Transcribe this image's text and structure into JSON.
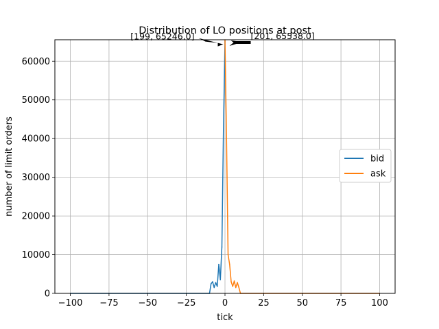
{
  "chart_data": {
    "type": "line",
    "title": "Distribution of LO positions at post",
    "xlabel": "tick",
    "ylabel": "number of limit orders",
    "xlim": [
      -110,
      110
    ],
    "ylim": [
      0,
      65538
    ],
    "grid": true,
    "legend_position": "center-right",
    "xticks": [
      -100,
      -75,
      -50,
      -25,
      0,
      25,
      50,
      75,
      100
    ],
    "xtick_labels": [
      "−100",
      "−75",
      "−50",
      "−25",
      "0",
      "25",
      "50",
      "75",
      "100"
    ],
    "yticks": [
      0,
      10000,
      20000,
      30000,
      40000,
      50000,
      60000
    ],
    "ytick_labels": [
      "0",
      "10000",
      "20000",
      "30000",
      "40000",
      "50000",
      "60000"
    ],
    "series": [
      {
        "name": "bid",
        "color": "#1f77b4",
        "x": [
          -100,
          -10,
          -9,
          -8,
          -7,
          -6,
          -5,
          -4,
          -3,
          -2,
          -1,
          0
        ],
        "y": [
          0,
          0,
          2500,
          3000,
          1500,
          2800,
          1800,
          7500,
          3500,
          12000,
          42000,
          65246
        ]
      },
      {
        "name": "ask",
        "color": "#ff7f0e",
        "x": [
          0,
          1,
          2,
          3,
          4,
          5,
          6,
          7,
          8,
          9,
          10,
          100
        ],
        "y": [
          65538,
          40000,
          10000,
          7500,
          3000,
          1800,
          3200,
          1500,
          2800,
          1500,
          0,
          0
        ]
      }
    ],
    "annotations": [
      {
        "text": "[199, 65246.0]",
        "x": -2,
        "y": 65246
      },
      {
        "text": "[201, 65538.0]",
        "x": 2,
        "y": 65538
      }
    ]
  }
}
